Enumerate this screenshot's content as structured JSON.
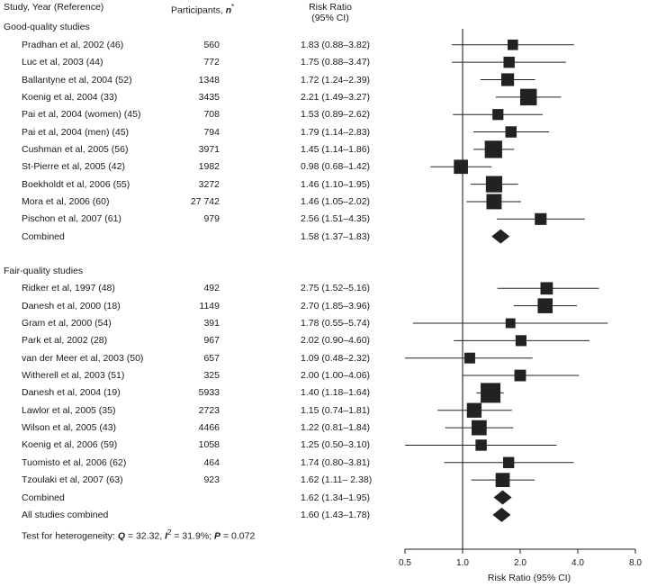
{
  "headers": {
    "study": "Study, Year (Reference)",
    "participants_label": "Participants,",
    "participants_n": "n",
    "participants_sup": "*",
    "rr_line1": "Risk Ratio",
    "rr_line2": "(95% CI)"
  },
  "footer": {
    "heterogeneity_label": "Test for heterogeneity:",
    "q_symbol": "Q",
    "q_value": " = 32.32, ",
    "i_symbol": "I",
    "i_sup": "2",
    "i_value": " = 31.9%; ",
    "p_symbol": "P",
    "p_value": " = 0.072"
  },
  "chart_data": {
    "type": "forest",
    "xlabel": "Risk Ratio (95% CI)",
    "x_scale": "log",
    "xlim": [
      0.5,
      8.0
    ],
    "x_ticks": [
      "0.5",
      "1.0",
      "2.0",
      "4.0",
      "8.0"
    ],
    "reference_line": 1.0,
    "sections": [
      {
        "title": "Good-quality studies",
        "rows": [
          {
            "study": "Pradhan et al, 2002 (46)",
            "n": "560",
            "rr_text": "1.83 (0.88–3.82)",
            "rr": 1.83,
            "lo": 0.88,
            "hi": 3.82,
            "weight": 560
          },
          {
            "study": "Luc et al, 2003 (44)",
            "n": "772",
            "rr_text": "1.75 (0.88–3.47)",
            "rr": 1.75,
            "lo": 0.88,
            "hi": 3.47,
            "weight": 772
          },
          {
            "study": "Ballantyne et al, 2004 (52)",
            "n": "1348",
            "rr_text": "1.72 (1.24–2.39)",
            "rr": 1.72,
            "lo": 1.24,
            "hi": 2.39,
            "weight": 1348
          },
          {
            "study": "Koenig et al, 2004 (33)",
            "n": "3435",
            "rr_text": "2.21 (1.49–3.27)",
            "rr": 2.21,
            "lo": 1.49,
            "hi": 3.27,
            "weight": 3435
          },
          {
            "study": "Pai et al, 2004 (women) (45)",
            "n": "708",
            "rr_text": "1.53 (0.89–2.62)",
            "rr": 1.53,
            "lo": 0.89,
            "hi": 2.62,
            "weight": 708
          },
          {
            "study": "Pai et al, 2004 (men) (45)",
            "n": "794",
            "rr_text": "1.79 (1.14–2.83)",
            "rr": 1.79,
            "lo": 1.14,
            "hi": 2.83,
            "weight": 794
          },
          {
            "study": "Cushman et al, 2005 (56)",
            "n": "3971",
            "rr_text": "1.45 (1.14–1.86)",
            "rr": 1.45,
            "lo": 1.14,
            "hi": 1.86,
            "weight": 3971
          },
          {
            "study": "St-Pierre et al, 2005 (42)",
            "n": "1982",
            "rr_text": "0.98 (0.68–1.42)",
            "rr": 0.98,
            "lo": 0.68,
            "hi": 1.42,
            "weight": 1982
          },
          {
            "study": "Boekholdt et al, 2006 (55)",
            "n": "3272",
            "rr_text": "1.46 (1.10–1.95)",
            "rr": 1.46,
            "lo": 1.1,
            "hi": 1.95,
            "weight": 3272
          },
          {
            "study": "Mora et al, 2006 (60)",
            "n": "27 742",
            "rr_text": "1.46 (1.05–2.02)",
            "rr": 1.46,
            "lo": 1.05,
            "hi": 2.02,
            "weight": 2600
          },
          {
            "study": "Pischon et al, 2007 (61)",
            "n": "979",
            "rr_text": "2.56 (1.51–4.35)",
            "rr": 2.56,
            "lo": 1.51,
            "hi": 4.35,
            "weight": 979
          }
        ],
        "combined": {
          "label": "Combined",
          "rr_text": "1.58 (1.37–1.83)",
          "rr": 1.58,
          "lo": 1.37,
          "hi": 1.83
        }
      },
      {
        "title": "Fair-quality studies",
        "rows": [
          {
            "study": "Ridker et al, 1997 (48)",
            "n": "492",
            "rr_text": "2.75 (1.52–5.16)",
            "rr": 2.75,
            "lo": 1.52,
            "hi": 5.16,
            "weight": 1200
          },
          {
            "study": "Danesh et al, 2000 (18)",
            "n": "1149",
            "rr_text": "2.70 (1.85–3.96)",
            "rr": 2.7,
            "lo": 1.85,
            "hi": 3.96,
            "weight": 2400
          },
          {
            "study": "Gram et al, 2000 (54)",
            "n": "391",
            "rr_text": "1.78 (0.55–5.74)",
            "rr": 1.78,
            "lo": 0.55,
            "hi": 5.74,
            "weight": 391
          },
          {
            "study": "Park et al, 2002 (28)",
            "n": "967",
            "rr_text": "2.02 (0.90–4.60)",
            "rr": 2.02,
            "lo": 0.9,
            "hi": 4.6,
            "weight": 700
          },
          {
            "study": "van der Meer et al, 2003 (50)",
            "n": "657",
            "rr_text": "1.09 (0.48–2.32)",
            "rr": 1.09,
            "lo": 0.48,
            "hi": 2.32,
            "weight": 650
          },
          {
            "study": "Witherell et al, 2003 (51)",
            "n": "325",
            "rr_text": "2.00 (1.00–4.06)",
            "rr": 2.0,
            "lo": 1.0,
            "hi": 4.06,
            "weight": 900
          },
          {
            "study": "Danesh et al, 2004 (19)",
            "n": "5933",
            "rr_text": "1.40 (1.18–1.64)",
            "rr": 1.4,
            "lo": 1.18,
            "hi": 1.64,
            "weight": 5933
          },
          {
            "study": "Lawlor et al, 2005 (35)",
            "n": "2723",
            "rr_text": "1.15 (0.74–1.81)",
            "rr": 1.15,
            "lo": 0.74,
            "hi": 1.81,
            "weight": 2300
          },
          {
            "study": "Wilson et al, 2005 (43)",
            "n": "4466",
            "rr_text": "1.22 (0.81–1.84)",
            "rr": 1.22,
            "lo": 0.81,
            "hi": 1.84,
            "weight": 2500
          },
          {
            "study": "Koenig et al, 2006 (59)",
            "n": "1058",
            "rr_text": "1.25 (0.50–3.10)",
            "rr": 1.25,
            "lo": 0.5,
            "hi": 3.1,
            "weight": 780
          },
          {
            "study": "Tuomisto et al, 2006 (62)",
            "n": "464",
            "rr_text": "1.74 (0.80–3.81)",
            "rr": 1.74,
            "lo": 0.8,
            "hi": 3.81,
            "weight": 760
          },
          {
            "study": "Tzoulaki et al, 2007 (63)",
            "n": "923",
            "rr_text": "1.62 (1.11– 2.38)",
            "rr": 1.62,
            "lo": 1.11,
            "hi": 2.38,
            "weight": 2000
          }
        ],
        "combined": {
          "label": "Combined",
          "rr_text": "1.62 (1.34–1.95)",
          "rr": 1.62,
          "lo": 1.34,
          "hi": 1.95
        }
      }
    ],
    "overall": {
      "label": "All studies combined",
      "rr_text": "1.60 (1.43–1.78)",
      "rr": 1.6,
      "lo": 1.43,
      "hi": 1.78
    }
  }
}
